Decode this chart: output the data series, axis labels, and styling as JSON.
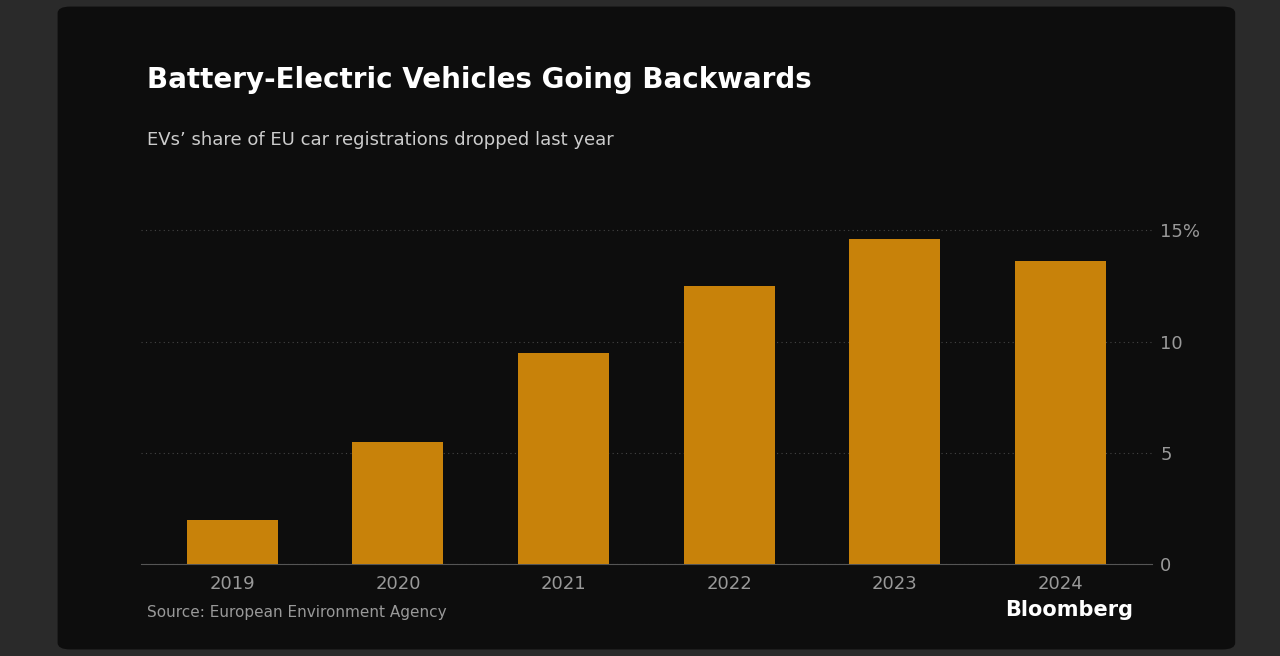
{
  "title": "Battery-Electric Vehicles Going Backwards",
  "subtitle": "EVs’ share of EU car registrations dropped last year",
  "categories": [
    "2019",
    "2020",
    "2021",
    "2022",
    "2023",
    "2024"
  ],
  "values": [
    2.0,
    5.5,
    9.5,
    12.5,
    14.6,
    13.6
  ],
  "bar_color": "#C8820A",
  "outer_bg_color": "#2a2a2a",
  "card_bg_color": "#0d0d0d",
  "title_color": "#ffffff",
  "subtitle_color": "#cccccc",
  "tick_color": "#999999",
  "grid_color": "#444444",
  "yticks": [
    0,
    5,
    10,
    15
  ],
  "ytick_labels": [
    "0",
    "5",
    "10",
    "15%"
  ],
  "ylim": [
    0,
    16.5
  ],
  "source_text": "Source: European Environment Agency",
  "bloomberg_text": "Bloomberg"
}
